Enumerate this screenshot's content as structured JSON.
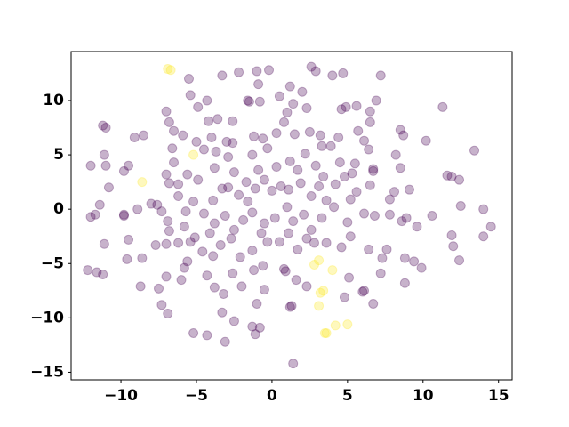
{
  "chart_data": {
    "type": "scatter",
    "alpha": 0.3,
    "xlim": [
      -13.3,
      15.9
    ],
    "ylim": [
      -15.7,
      14.5
    ],
    "xticks": [
      {
        "value": -10,
        "label": "−10"
      },
      {
        "value": -5,
        "label": "−5"
      },
      0,
      5,
      10,
      15
    ],
    "yticks": [
      {
        "value": -15,
        "label": "−15"
      },
      {
        "value": -10,
        "label": "−10"
      },
      {
        "value": -5,
        "label": "−5"
      },
      0,
      5,
      10
    ],
    "series": [
      {
        "color": "#440154",
        "x": [
          -5.4,
          -5.5,
          -4.3,
          -3.3,
          -2.2,
          -1.0,
          -0.9,
          -0.2,
          1.2,
          1.4,
          2.0,
          2.6,
          2.9,
          4.0,
          4.7,
          7.2,
          -1.5,
          -0.8,
          -7,
          -6.8,
          -4.9,
          -4.2,
          -3.6,
          -2.6,
          -1.6,
          0.5,
          1.0,
          2.3,
          4.6,
          4.9,
          5.6,
          6.5,
          6.9,
          11.3,
          -11.2,
          -11.0,
          -9.1,
          -8.5,
          -6.5,
          -5.9,
          -5.0,
          -4.0,
          -3.0,
          -2.6,
          -1.2,
          -0.6,
          0.8,
          0.3,
          1.5,
          2.5,
          3.2,
          4.4,
          5.7,
          6.5,
          8.5,
          8.7,
          10.2,
          -6.6,
          -6.5,
          -4.5,
          -3.7,
          -2.9,
          -1.3,
          -0.3,
          1.2,
          2.2,
          3.3,
          3.9,
          4.5,
          5.5,
          6.1,
          6.4,
          8.2,
          13.4,
          -11.1,
          -11,
          -12,
          -9.5,
          -10.8,
          -9.8,
          -7.0,
          -6.8,
          -6.2,
          -5.6,
          -4.9,
          -3.8,
          -2.5,
          -1.7,
          -0.9,
          0.3,
          1.7,
          2.9,
          3.4,
          4.8,
          5.3,
          6.7,
          6.7,
          8.5,
          11.6,
          11.9,
          12.4,
          -11.4,
          -11.7,
          -9.8,
          -9.8,
          -8.9,
          -8.0,
          -7.6,
          -7.3,
          -6.9,
          -6.2,
          -5.7,
          -5.2,
          -4.5,
          -3.9,
          -3.3,
          -2.9,
          -2.2,
          -1.6,
          -1.1,
          -0.5,
          0,
          0.6,
          1.1,
          1.9,
          2.6,
          3.1,
          3.6,
          4.2,
          5.2,
          5.6,
          6.5,
          7.8,
          7.8,
          8.1,
          9.1,
          10.6,
          12.5,
          14,
          -12,
          -9.5,
          -7.7,
          -7.0,
          -6.8,
          -5.8,
          -5.1,
          -4.1,
          -3.8,
          -3.1,
          -2.5,
          -1.9,
          -1.3,
          -0.5,
          0.2,
          1,
          1.4,
          2.1,
          2.6,
          3.3,
          4.1,
          5.0,
          6.1,
          6.8,
          8.6,
          8.9,
          9.6,
          11.9,
          14,
          14.5,
          -11.1,
          -9.6,
          -8.6,
          -7.5,
          -7,
          -6.2,
          -5.8,
          -5.4,
          -4.6,
          -3.9,
          -3.4,
          -2.7,
          -2.1,
          -1.3,
          -0.7,
          -0.3,
          0.5,
          1.1,
          1.7,
          2.3,
          2.8,
          3.6,
          4.6,
          5.2,
          6.4,
          7.3,
          7.6,
          8.8,
          9.4,
          9.9,
          12.0,
          12.4,
          -12.2,
          -11.6,
          -11.2,
          -8.7,
          -7.3,
          -6.9,
          -6.0,
          -5.6,
          -4.3,
          -3.8,
          -3.2,
          -2.6,
          -2.0,
          -1.2,
          -0.6,
          -0.5,
          0.8,
          0.9,
          1.6,
          2.3,
          4.8,
          5.1,
          6.1,
          6.0,
          6.7,
          7.2,
          8.8,
          -5.2,
          -4.3,
          -3.1,
          -2.5,
          -3.3,
          -1.3,
          -1.1,
          -0.8,
          -1,
          1.2,
          1.3,
          1.4
        ],
        "values": [
          10.5,
          12,
          10,
          12.3,
          12.6,
          12.7,
          11.5,
          12.8,
          11.3,
          9.7,
          10.8,
          13.1,
          12.7,
          12.3,
          12.5,
          12.3,
          9.9,
          9.9,
          9,
          8,
          9.4,
          8.1,
          8.3,
          8.1,
          10,
          10.4,
          8.9,
          9.3,
          9.2,
          9.4,
          9.5,
          9.0,
          10.0,
          9.4,
          7.7,
          7.5,
          6.6,
          6.8,
          7.2,
          6.8,
          6.2,
          6.6,
          6.2,
          6.1,
          6.7,
          6.5,
          8.0,
          7.0,
          6.9,
          7.1,
          6.8,
          6.6,
          7.2,
          8.0,
          7.3,
          6.8,
          6.3,
          5.6,
          4.3,
          5.5,
          5.3,
          4.8,
          5.0,
          5.6,
          4.4,
          5.1,
          5.8,
          5.8,
          4.3,
          4.2,
          6.3,
          5.5,
          5.0,
          5.4,
          5.0,
          4.0,
          4.0,
          4.0,
          2.0,
          3.5,
          3.2,
          2.4,
          2.3,
          3.2,
          2.7,
          3.8,
          3.4,
          2.5,
          3.6,
          3.9,
          3.6,
          4.0,
          3.0,
          3.0,
          3.3,
          3.5,
          3.7,
          3.8,
          3.1,
          3.0,
          2.7,
          0.4,
          -0.5,
          -0.5,
          -0.6,
          0.0,
          0.5,
          0.4,
          -0.2,
          -1.1,
          1.2,
          -0.2,
          0.7,
          -0.4,
          0.8,
          1.9,
          2.0,
          1.3,
          0.7,
          1.9,
          2.7,
          1.7,
          2.1,
          1.8,
          2.4,
          1.2,
          2.1,
          0.8,
          2.3,
          0.9,
          1.6,
          2.2,
          0.9,
          -0.5,
          1.6,
          1.8,
          -0.6,
          0.3,
          0,
          -0.7,
          -2.8,
          -3.3,
          -3.2,
          -2.0,
          -1.6,
          -2.6,
          -2.2,
          -1.3,
          -0.6,
          -1.9,
          -1.0,
          -0.3,
          -1.3,
          -0.8,
          0.2,
          -1.1,
          -0.5,
          -1.9,
          -0.8,
          0.2,
          -1.2,
          -0.4,
          -0.6,
          -1.1,
          -0.8,
          -1.6,
          -2.4,
          -2.5,
          -1.6,
          -3.2,
          -4.6,
          -4.5,
          -7.3,
          -6.2,
          -3.1,
          -5.4,
          -3.0,
          -3.9,
          -4.3,
          -3.3,
          -2.7,
          -4.4,
          -3.8,
          -2.2,
          -3.0,
          -3.0,
          -2.2,
          -3.7,
          -2.7,
          -3.1,
          -3.1,
          -3.5,
          -2.5,
          -3.7,
          -4.5,
          -3.7,
          -4.5,
          -4.8,
          -5.4,
          -3.4,
          -4.7,
          -5.6,
          -5.8,
          -6.0,
          -7.1,
          -8.8,
          -9.6,
          -6.5,
          -4.8,
          -6.1,
          -7.2,
          -7.8,
          -5.9,
          -7.1,
          -5.6,
          -5.2,
          -7.4,
          -5.5,
          -5.7,
          -6.5,
          -7.1,
          -8.1,
          -6.3,
          -7.5,
          -7.6,
          -8.7,
          -5.9,
          -6.8,
          -11.4,
          -11.6,
          -12.2,
          -10.3,
          -9.5,
          -10.8,
          -11.5,
          -10.9,
          -8.7,
          -9.0,
          -8.9,
          -14.2
        ]
      },
      {
        "color": "#fde725",
        "x": [
          -6.9,
          -6.7,
          -8.6,
          -5.2,
          2.8,
          3.1,
          4.0,
          3.2,
          3.4,
          3.1,
          3.6,
          3.5,
          4.2,
          5.0
        ],
        "values": [
          12.9,
          12.8,
          2.5,
          5.0,
          -5.1,
          -4.7,
          -5.6,
          -7.7,
          -7.5,
          -8.9,
          -11.4,
          -11.4,
          -10.7,
          -10.6
        ]
      }
    ]
  }
}
